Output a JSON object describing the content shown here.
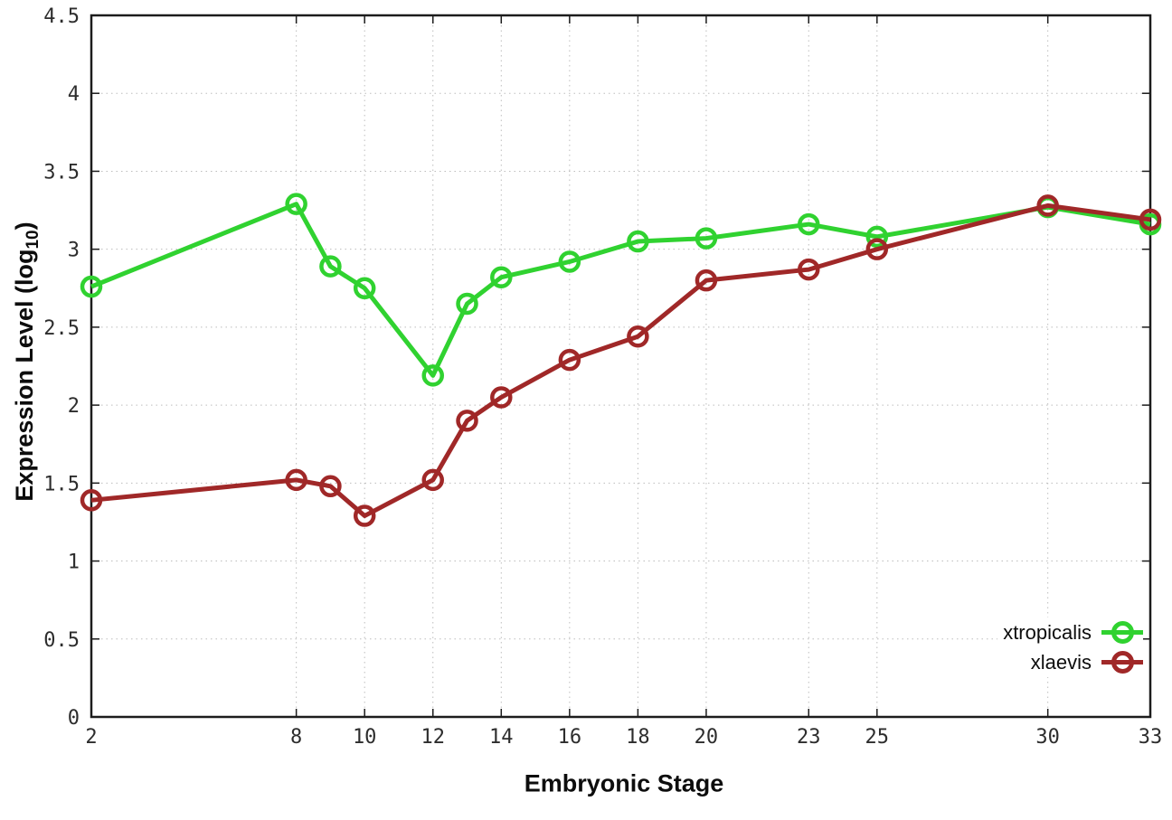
{
  "chart_data": {
    "type": "line",
    "title": "",
    "xlabel": "Embryonic Stage",
    "ylabel_main": "Expression Level (log",
    "ylabel_sub": "10",
    "ylabel_close": ")",
    "x": [
      2,
      8,
      9,
      10,
      12,
      13,
      14,
      16,
      18,
      20,
      23,
      25,
      30,
      33
    ],
    "series": [
      {
        "name": "xtropicalis",
        "color": "#30d230",
        "values": [
          2.76,
          3.29,
          2.89,
          2.75,
          2.19,
          2.65,
          2.82,
          2.92,
          3.05,
          3.07,
          3.16,
          3.08,
          3.27,
          3.16
        ]
      },
      {
        "name": "xlaevis",
        "color": "#a02828",
        "values": [
          1.39,
          1.52,
          1.48,
          1.29,
          1.52,
          1.9,
          2.05,
          2.29,
          2.44,
          2.8,
          2.87,
          3.0,
          3.28,
          3.19
        ]
      }
    ],
    "xlim": [
      2,
      33
    ],
    "ylim": [
      0,
      4.5
    ],
    "x_ticks": [
      2,
      8,
      10,
      12,
      14,
      16,
      18,
      20,
      23,
      25,
      30,
      33
    ],
    "y_ticks": [
      0,
      0.5,
      1,
      1.5,
      2,
      2.5,
      3,
      3.5,
      4,
      4.5
    ],
    "grid": true,
    "legend_position": "bottom-right",
    "marker": "open-circle",
    "line_width": 5,
    "marker_radius": 10
  }
}
